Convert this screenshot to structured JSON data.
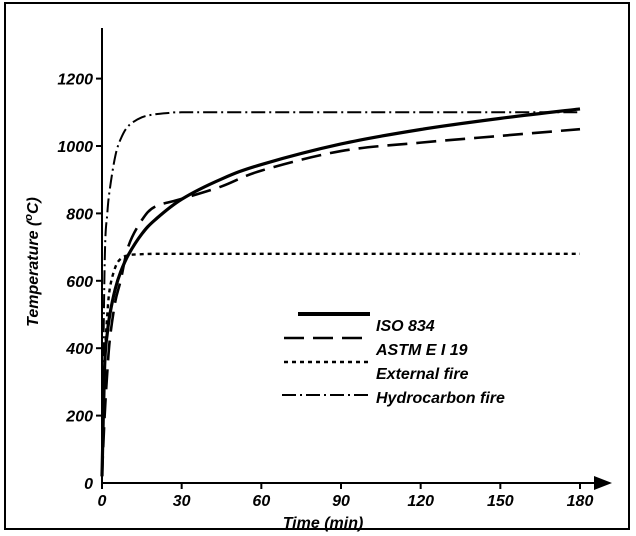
{
  "chart_data": {
    "type": "line",
    "title": "",
    "xlabel": "Time (min)",
    "ylabel_main": "Temperature (",
    "ylabel_sup": "o",
    "ylabel_end": "C)",
    "xlim": [
      0,
      180
    ],
    "ylim": [
      0,
      1300
    ],
    "x_ticks": [
      0,
      30,
      60,
      90,
      120,
      150,
      180
    ],
    "x_tick_labels": [
      "0",
      "30",
      "60",
      "90",
      "120",
      "150",
      "180"
    ],
    "y_ticks": [
      0,
      200,
      400,
      600,
      800,
      1000,
      1200
    ],
    "y_tick_labels": [
      "0",
      "200",
      "400",
      "600",
      "800",
      "1000",
      "1200"
    ],
    "grid": false,
    "legend_position": "center",
    "series": [
      {
        "name": "ISO 834",
        "style": "solid",
        "x": [
          0,
          1,
          2,
          3,
          5,
          7,
          10,
          15,
          20,
          30,
          45,
          60,
          90,
          120,
          150,
          180
        ],
        "y": [
          20,
          349,
          445,
          502,
          576,
          626,
          678,
          739,
          781,
          842,
          902,
          945,
          1006,
          1049,
          1082,
          1110
        ]
      },
      {
        "name": "ASTM E I 19",
        "style": "dashed",
        "x": [
          0,
          1,
          2,
          3,
          5,
          7,
          10,
          15,
          20,
          30,
          45,
          60,
          90,
          120,
          150,
          180
        ],
        "y": [
          20,
          200,
          330,
          430,
          538,
          600,
          704,
          780,
          820,
          843,
          880,
          927,
          985,
          1010,
          1030,
          1050
        ]
      },
      {
        "name": "External fire",
        "style": "dotted",
        "x": [
          0,
          1,
          2,
          3,
          5,
          7,
          10,
          15,
          20,
          30,
          60,
          90,
          120,
          150,
          180
        ],
        "y": [
          20,
          350,
          500,
          580,
          640,
          665,
          676,
          679,
          680,
          680,
          680,
          680,
          680,
          680,
          680
        ]
      },
      {
        "name": "Hydrocarbon fire",
        "style": "dashdot",
        "x": [
          0,
          1,
          2,
          3,
          5,
          7,
          10,
          15,
          20,
          25,
          30,
          60,
          90,
          120,
          150,
          180
        ],
        "y": [
          20,
          650,
          800,
          875,
          970,
          1020,
          1060,
          1085,
          1094,
          1098,
          1100,
          1100,
          1100,
          1100,
          1100,
          1100
        ]
      }
    ]
  }
}
